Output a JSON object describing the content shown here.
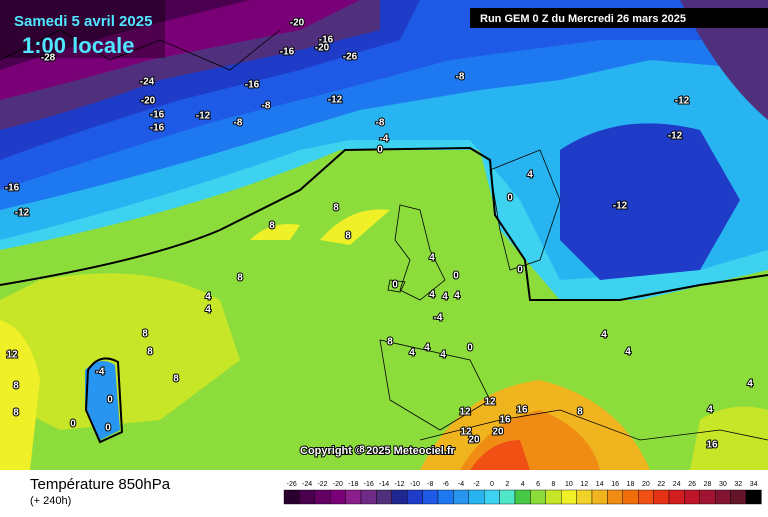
{
  "header": {
    "date": "Samedi 5 avril 2025",
    "time": "1:00 locale",
    "run": "Run GEM 0 Z du Mercredi 26 mars 2025",
    "copyright": "Copyright © 2025 Meteociel.fr"
  },
  "footer": {
    "title": "Température 850hPa",
    "lead": "(+ 240h)"
  },
  "colorbar": {
    "ticks": [
      -26,
      -24,
      -22,
      -20,
      -18,
      -16,
      -14,
      -12,
      -10,
      -8,
      -6,
      -4,
      -2,
      0,
      2,
      4,
      6,
      8,
      10,
      12,
      14,
      16,
      18,
      20,
      22,
      24,
      26,
      28,
      30,
      32,
      34
    ],
    "colors": [
      "#2a002e",
      "#4a004e",
      "#640064",
      "#7a0078",
      "#8c1e8c",
      "#6e2a84",
      "#50307c",
      "#1e2890",
      "#1e3cc8",
      "#1e5ae6",
      "#1e78f0",
      "#2896f0",
      "#28b4f0",
      "#3cd2f0",
      "#50e6c8",
      "#46c846",
      "#8cdc3c",
      "#c8e628",
      "#f0f028",
      "#f0d228",
      "#f0b41e",
      "#f08c14",
      "#f06e0a",
      "#f05014",
      "#e63214",
      "#d21e1e",
      "#be1428",
      "#a01432",
      "#821432",
      "#641428",
      "#000000"
    ]
  },
  "contour_labels": [
    -20,
    -16,
    -20,
    -26,
    -16,
    -16,
    -8,
    -12,
    -24,
    -20,
    -16,
    -16,
    -12,
    -8,
    -8,
    -8,
    -4,
    0,
    -28,
    -16,
    -12,
    -12,
    -12,
    -12,
    8,
    8,
    8,
    8,
    4,
    4,
    4,
    0,
    0,
    4,
    4,
    4,
    -4,
    8,
    4,
    4,
    0,
    4,
    -4,
    0,
    0,
    0,
    8,
    8,
    8,
    12,
    8,
    8,
    12,
    12,
    16,
    12,
    16,
    20,
    20,
    16,
    8,
    4,
    4,
    4,
    4,
    0,
    4,
    0,
    8
  ]
}
